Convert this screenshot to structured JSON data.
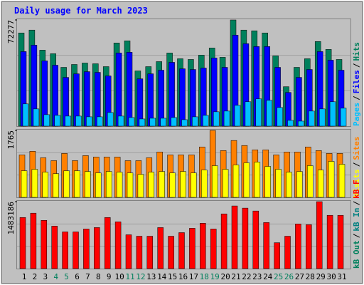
{
  "title": "Daily usage for March 2023",
  "separator": "/",
  "categories": [
    "1",
    "2",
    "3",
    "4",
    "5",
    "6",
    "7",
    "8",
    "9",
    "10",
    "11",
    "12",
    "13",
    "14",
    "15",
    "16",
    "17",
    "18",
    "19",
    "20",
    "21",
    "22",
    "23",
    "24",
    "25",
    "26",
    "27",
    "28",
    "29",
    "30",
    "31"
  ],
  "category_colors": [
    "#000000",
    "#000000",
    "#000000",
    "#00805c",
    "#00805c",
    "#000000",
    "#000000",
    "#000000",
    "#000000",
    "#000000",
    "#00805c",
    "#00805c",
    "#000000",
    "#000000",
    "#000000",
    "#000000",
    "#000000",
    "#00805c",
    "#00805c",
    "#000000",
    "#000000",
    "#000000",
    "#000000",
    "#000000",
    "#00805c",
    "#00805c",
    "#000000",
    "#000000",
    "#000000",
    "#000000",
    "#000000"
  ],
  "chart_data": [
    {
      "type": "bar",
      "ylim": [
        0,
        72277
      ],
      "yticks": [
        72277
      ],
      "series": [
        {
          "name": "Hits",
          "color": "#00805c",
          "values": [
            63440,
            65392,
            51728,
            49288,
            40016,
            41968,
            42944,
            42456,
            40504,
            56608,
            58072,
            37576,
            40504,
            43920,
            49776,
            45872,
            45384,
            48312,
            53192,
            46848,
            72277,
            65392,
            64904,
            63440,
            47824,
            26840,
            40016,
            45872,
            57584,
            52216,
            45384
          ]
        },
        {
          "name": "Files",
          "color": "#0000ff",
          "values": [
            50752,
            55144,
            44408,
            41480,
            33184,
            35624,
            37088,
            36600,
            34160,
            49776,
            50264,
            32208,
            35624,
            38064,
            43432,
            39040,
            38552,
            39528,
            46360,
            40016,
            61976,
            56120,
            54168,
            54168,
            40016,
            22936,
            33184,
            38552,
            50752,
            44896,
            38064
          ]
        },
        {
          "name": "Pages",
          "color": "#00c0ff",
          "values": [
            15128,
            11712,
            7808,
            7320,
            6832,
            6832,
            6344,
            6344,
            9272,
            6832,
            5856,
            4880,
            5368,
            5368,
            5856,
            4392,
            6344,
            7320,
            9760,
            10248,
            14152,
            16592,
            18544,
            17568,
            12688,
            3904,
            3416,
            10248,
            11712,
            16592,
            12200
          ]
        }
      ]
    },
    {
      "type": "bar",
      "ylim": [
        0,
        1765
      ],
      "yticks": [
        1765
      ],
      "series": [
        {
          "name": "Sites",
          "color": "#ff8000",
          "values": [
            1120,
            1215,
            1044,
            968,
            1158,
            968,
            1101,
            1063,
            1063,
            1063,
            968,
            968,
            1044,
            1196,
            1120,
            1120,
            1120,
            1329,
            1765,
            1234,
            1499,
            1367,
            1253,
            1253,
            1120,
            1196,
            1196,
            1329,
            1234,
            1158,
            1158
          ]
        },
        {
          "name": "Visits",
          "color": "#ffff00",
          "values": [
            702,
            740,
            664,
            626,
            702,
            702,
            683,
            645,
            683,
            664,
            645,
            607,
            664,
            683,
            645,
            683,
            645,
            721,
            835,
            740,
            854,
            911,
            930,
            816,
            740,
            664,
            683,
            835,
            721,
            949,
            873
          ]
        }
      ]
    },
    {
      "type": "bar",
      "ylim": [
        0,
        1483186
      ],
      "yticks": [
        1483186
      ],
      "series": [
        {
          "name": "kB F",
          "color": "#ff0000",
          "values": [
            1132308,
            1227996,
            1068516,
            940932,
            813348,
            813348,
            877140,
            909036,
            1132308,
            1036620,
            749556,
            717660,
            717660,
            909036,
            717660,
            797400,
            893088,
            1004724,
            877140,
            1212048,
            1387476,
            1339632,
            1275840,
            1020672,
            574128,
            717660,
            988776,
            972828,
            1483186,
            1180152,
            1180152
          ]
        }
      ],
      "extra_legend": [
        {
          "name": "kB In",
          "color": "#008080"
        },
        {
          "name": "kB Out",
          "color": "#00805c"
        }
      ]
    }
  ]
}
